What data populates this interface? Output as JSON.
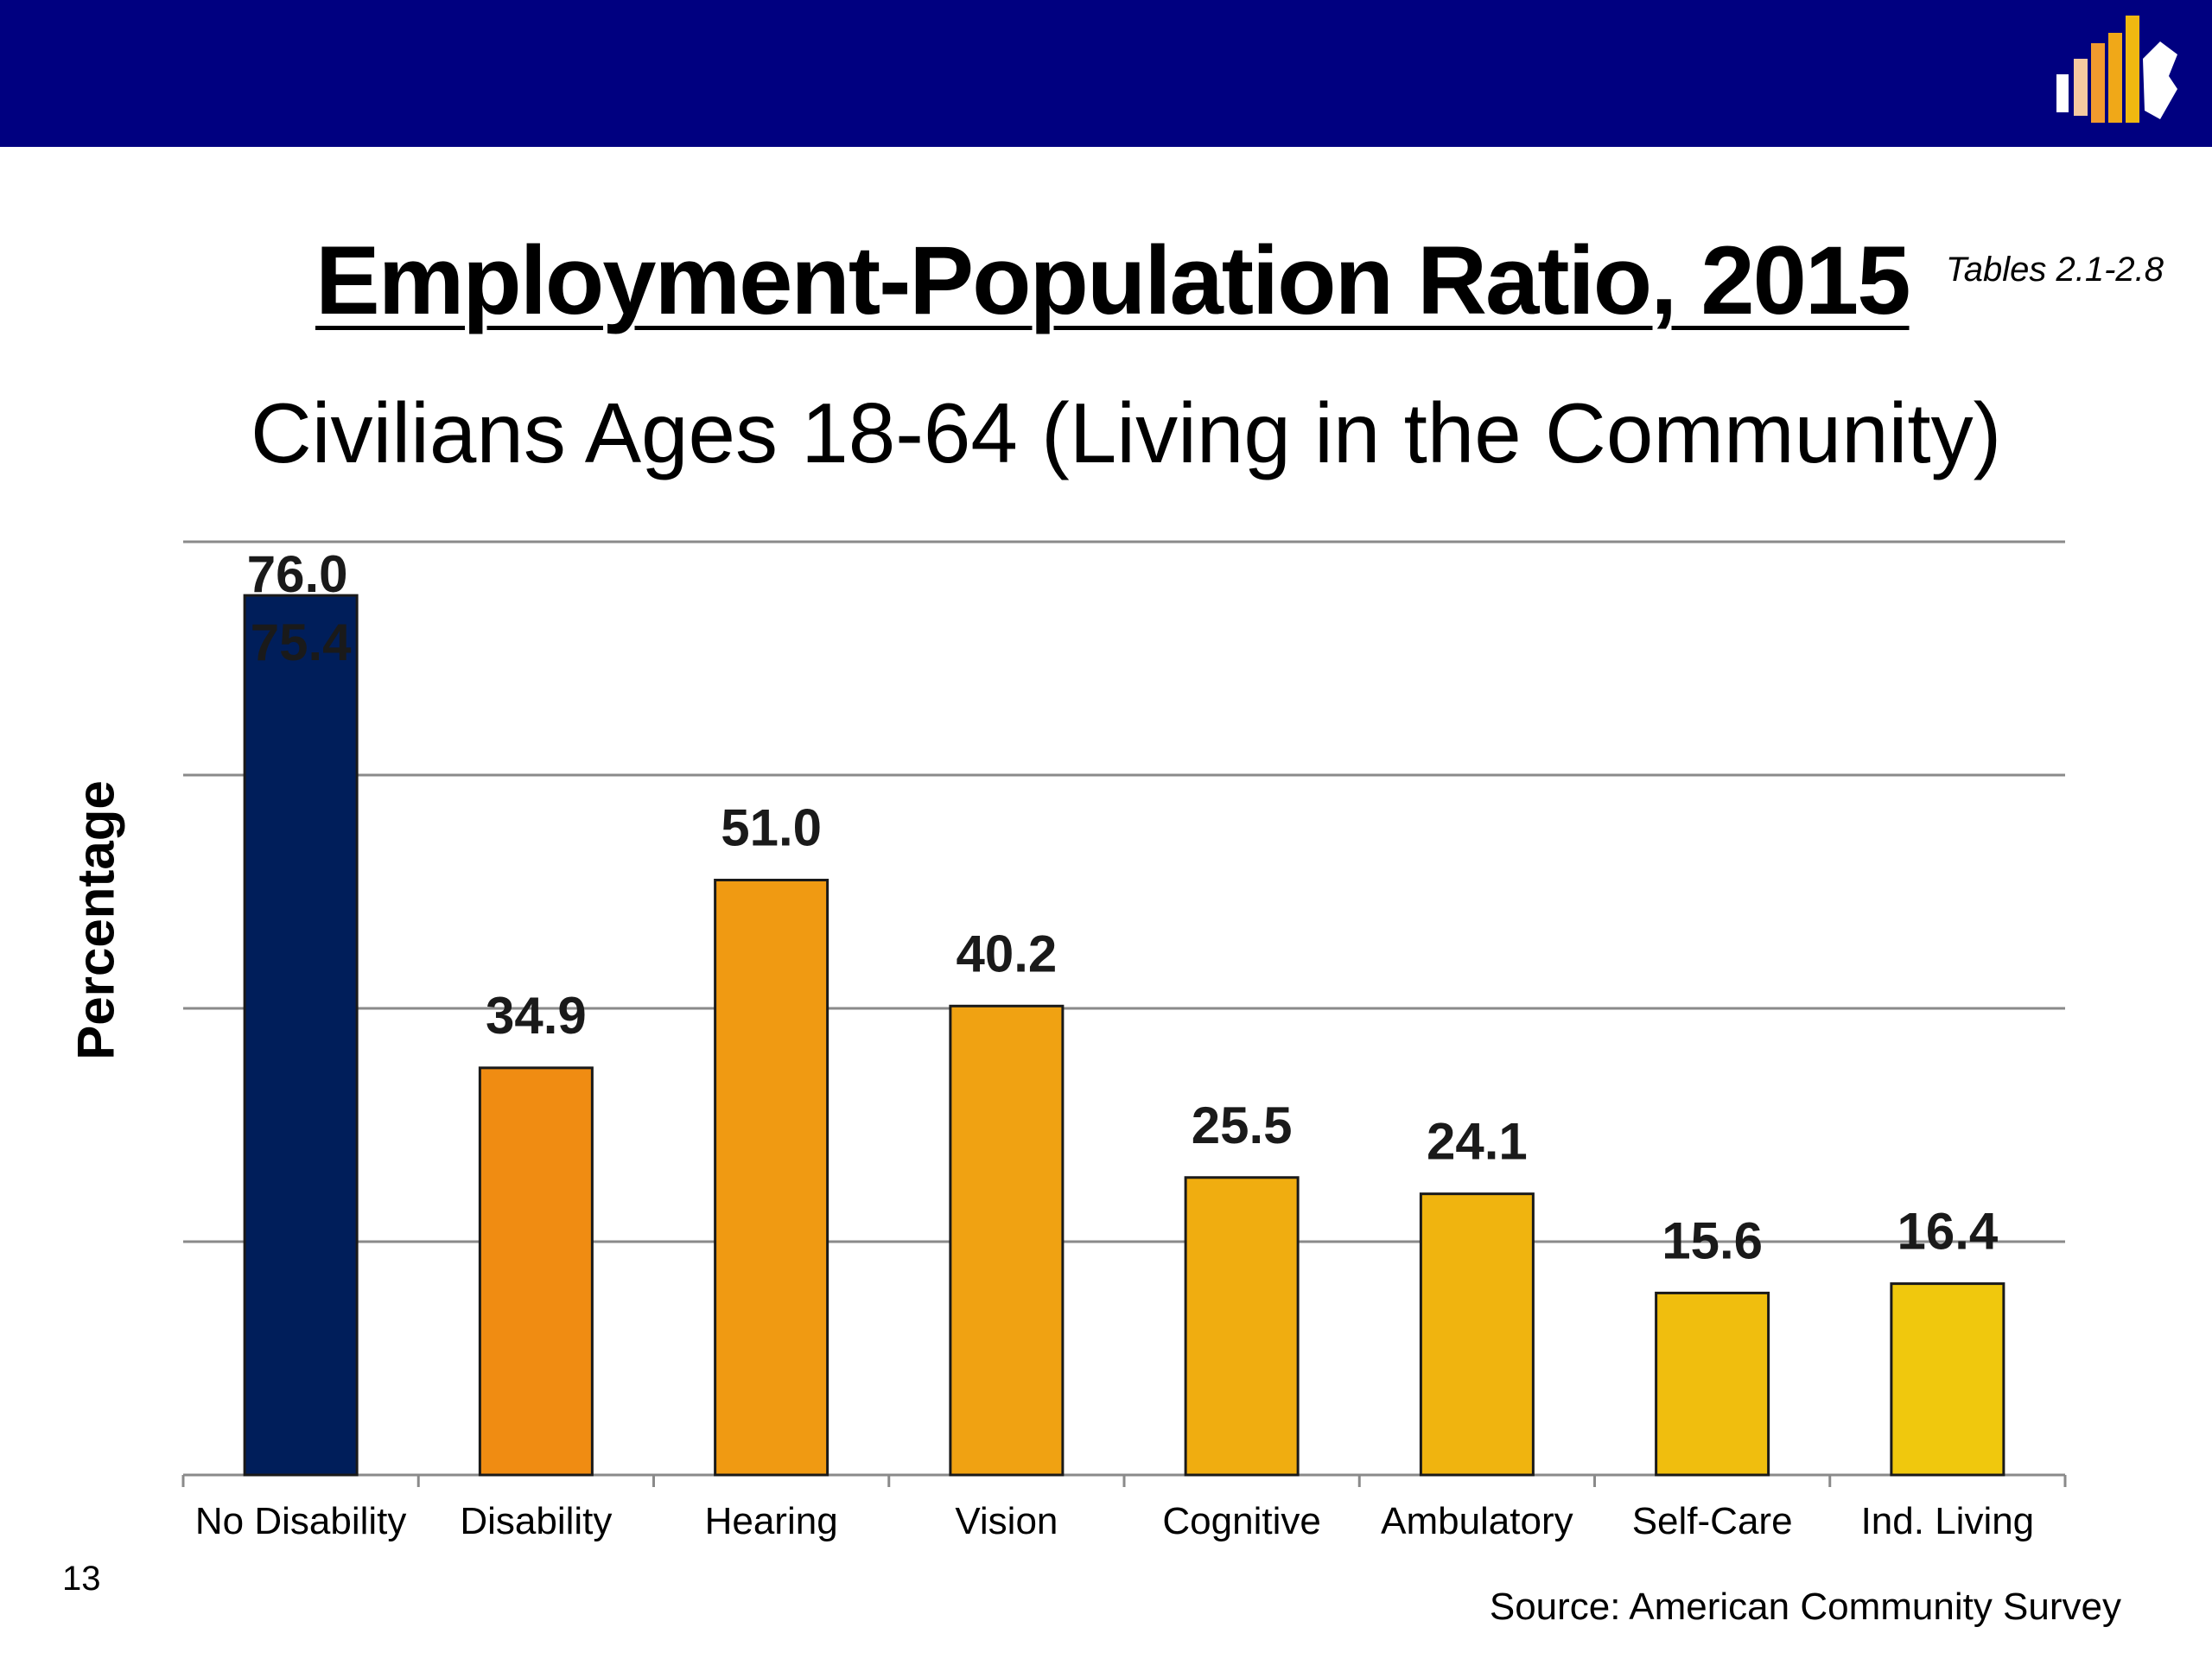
{
  "slide": {
    "title": "Employment-Population Ratio, 2015",
    "tables_ref": "Tables 2.1-2.8",
    "page_number": "13",
    "source": "Source: American Community Survey",
    "band_color": "#000080"
  },
  "chart_data": {
    "type": "bar",
    "title": "Civilians Ages 18-64 (Living in the Community)",
    "ylabel": "Percentage",
    "xlabel": "",
    "categories": [
      "No Disability",
      "Disability",
      "Hearing",
      "Vision",
      "Cognitive",
      "Ambulatory",
      "Self-Care",
      "Ind. Living"
    ],
    "values": [
      75.4,
      34.9,
      51.0,
      40.2,
      25.5,
      24.1,
      15.6,
      16.4
    ],
    "data_labels": [
      "75.4",
      "34.9",
      "51.0",
      "40.2",
      "25.5",
      "24.1",
      "15.6",
      "16.4"
    ],
    "extra_label": "76.0",
    "ylim": [
      0,
      80
    ],
    "gridlines": [
      20,
      40,
      60,
      80
    ],
    "grid": true,
    "y_tick_labels_shown": false,
    "colors": [
      "#001E5A",
      "#F08C12",
      "#F09A12",
      "#F0A212",
      "#F0AD10",
      "#F0B40F",
      "#F0BE0E",
      "#F0C80D"
    ]
  }
}
